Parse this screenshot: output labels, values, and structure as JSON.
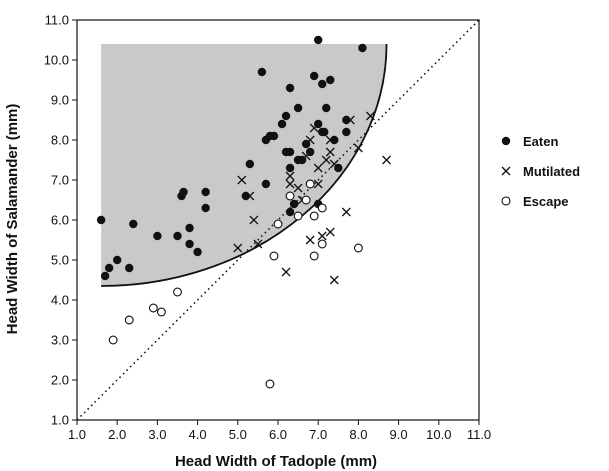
{
  "chart_data": {
    "type": "scatter",
    "title": "",
    "xlabel": "Head Width of Tadople (mm)",
    "ylabel": "Head Width of Salamander (mm)",
    "xlim": [
      1.0,
      11.0
    ],
    "ylim": [
      1.0,
      11.0
    ],
    "x_ticks": [
      "1.0",
      "2.0",
      "3.0",
      "4.0",
      "5.0",
      "6.0",
      "7.0",
      "8.0",
      "9.0",
      "10.0",
      "11.0"
    ],
    "y_ticks": [
      "1.0",
      "2.0",
      "3.0",
      "4.0",
      "5.0",
      "6.0",
      "7.0",
      "8.0",
      "9.0",
      "10.0",
      "11.0"
    ],
    "grid": false,
    "legend_position": "right",
    "reference_line": {
      "style": "dotted",
      "from": [
        1.0,
        1.0
      ],
      "to": [
        11.0,
        11.0
      ]
    },
    "shaded_region": {
      "description": "shaded region bounded by curve",
      "x_start": 1.6,
      "y_bottom": 4.35,
      "x_end": 8.7,
      "y_top": 10.4
    },
    "series": [
      {
        "name": "Eaten",
        "marker": "filled-circle",
        "points": [
          [
            1.6,
            6.0
          ],
          [
            1.7,
            4.6
          ],
          [
            1.8,
            4.8
          ],
          [
            2.0,
            5.0
          ],
          [
            2.3,
            4.8
          ],
          [
            2.4,
            5.9
          ],
          [
            3.0,
            5.6
          ],
          [
            3.5,
            5.6
          ],
          [
            3.6,
            6.6
          ],
          [
            3.65,
            6.7
          ],
          [
            3.8,
            5.8
          ],
          [
            3.8,
            5.4
          ],
          [
            4.0,
            5.2
          ],
          [
            4.2,
            6.7
          ],
          [
            4.2,
            6.3
          ],
          [
            5.2,
            6.6
          ],
          [
            5.3,
            7.4
          ],
          [
            5.6,
            9.7
          ],
          [
            5.7,
            8.0
          ],
          [
            5.7,
            6.9
          ],
          [
            5.8,
            8.1
          ],
          [
            5.9,
            8.1
          ],
          [
            6.1,
            8.4
          ],
          [
            6.2,
            7.7
          ],
          [
            6.2,
            8.6
          ],
          [
            6.3,
            7.3
          ],
          [
            6.3,
            7.7
          ],
          [
            6.3,
            9.3
          ],
          [
            6.3,
            6.2
          ],
          [
            6.4,
            6.4
          ],
          [
            6.5,
            8.8
          ],
          [
            6.5,
            7.5
          ],
          [
            6.6,
            7.5
          ],
          [
            6.7,
            7.9
          ],
          [
            6.8,
            7.7
          ],
          [
            6.9,
            9.6
          ],
          [
            7.0,
            10.5
          ],
          [
            7.0,
            8.4
          ],
          [
            7.1,
            9.4
          ],
          [
            7.1,
            8.2
          ],
          [
            7.15,
            8.2
          ],
          [
            7.2,
            8.8
          ],
          [
            7.3,
            9.5
          ],
          [
            7.4,
            8.0
          ],
          [
            7.5,
            7.3
          ],
          [
            7.7,
            8.2
          ],
          [
            7.7,
            8.5
          ],
          [
            8.1,
            10.3
          ],
          [
            7.0,
            6.4
          ]
        ]
      },
      {
        "name": "Mutilated",
        "marker": "x",
        "points": [
          [
            5.0,
            5.3
          ],
          [
            5.1,
            7.0
          ],
          [
            5.3,
            6.6
          ],
          [
            5.4,
            6.0
          ],
          [
            5.5,
            5.4
          ],
          [
            6.2,
            4.7
          ],
          [
            6.3,
            6.9
          ],
          [
            6.3,
            7.1
          ],
          [
            6.5,
            6.8
          ],
          [
            6.6,
            6.5
          ],
          [
            6.7,
            7.6
          ],
          [
            6.8,
            8.0
          ],
          [
            6.8,
            5.5
          ],
          [
            6.9,
            8.3
          ],
          [
            7.0,
            7.3
          ],
          [
            7.0,
            6.9
          ],
          [
            7.1,
            5.6
          ],
          [
            7.2,
            7.5
          ],
          [
            7.3,
            5.7
          ],
          [
            7.3,
            7.7
          ],
          [
            7.3,
            8.0
          ],
          [
            7.4,
            7.4
          ],
          [
            7.4,
            4.5
          ],
          [
            7.7,
            6.2
          ],
          [
            7.8,
            8.5
          ],
          [
            8.0,
            7.8
          ],
          [
            8.3,
            8.6
          ],
          [
            8.7,
            7.5
          ]
        ]
      },
      {
        "name": "Escape",
        "marker": "open-circle",
        "points": [
          [
            1.9,
            3.0
          ],
          [
            2.3,
            3.5
          ],
          [
            2.9,
            3.8
          ],
          [
            3.1,
            3.7
          ],
          [
            3.5,
            4.2
          ],
          [
            5.8,
            1.9
          ],
          [
            5.9,
            5.1
          ],
          [
            6.0,
            5.9
          ],
          [
            6.3,
            6.6
          ],
          [
            6.5,
            6.1
          ],
          [
            6.7,
            6.5
          ],
          [
            6.8,
            6.9
          ],
          [
            6.9,
            6.1
          ],
          [
            6.9,
            5.1
          ],
          [
            7.1,
            6.3
          ],
          [
            7.1,
            5.4
          ],
          [
            8.0,
            5.3
          ]
        ]
      }
    ]
  }
}
